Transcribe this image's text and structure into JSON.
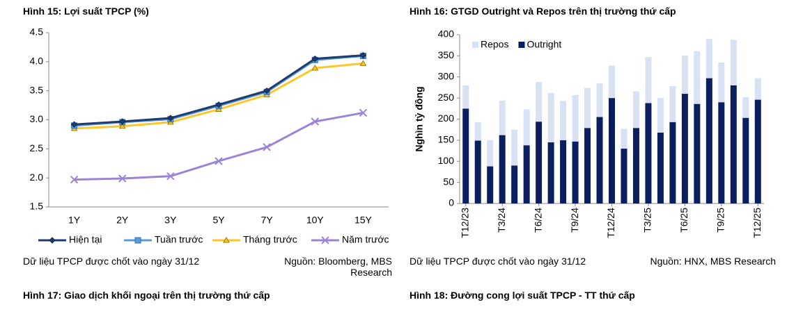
{
  "chart_data": [
    {
      "type": "line",
      "title": "Hình 15: Lợi suất TPCP (%)",
      "categories": [
        "1Y",
        "2Y",
        "3Y",
        "5Y",
        "7Y",
        "10Y",
        "15Y"
      ],
      "series": [
        {
          "name": "Hiện tại",
          "color": "#1f3c6e",
          "marker": "diamond",
          "values": [
            2.92,
            2.97,
            3.03,
            3.26,
            3.5,
            4.05,
            4.11
          ]
        },
        {
          "name": "Tuần trước",
          "color": "#5b9bd5",
          "marker": "square",
          "values": [
            2.9,
            2.96,
            3.01,
            3.24,
            3.48,
            4.03,
            4.1
          ]
        },
        {
          "name": "Tháng trước",
          "color": "#ffc62a",
          "marker": "triangle",
          "values": [
            2.85,
            2.89,
            2.96,
            3.18,
            3.43,
            3.89,
            3.97
          ]
        },
        {
          "name": "Năm trước",
          "color": "#9b83d8",
          "marker": "x",
          "values": [
            1.97,
            1.99,
            2.03,
            2.29,
            2.53,
            2.97,
            3.12
          ]
        }
      ],
      "ylim": [
        1.5,
        4.5
      ],
      "yticks": [
        1.5,
        {
          "value": 2,
          "label": "2.0"
        },
        2.5,
        {
          "value": 3,
          "label": "3.0"
        },
        3.5,
        {
          "value": 4,
          "label": "4.0"
        },
        4.5
      ],
      "grid": false,
      "legend": "bottom",
      "note": "Dữ liệu TPCP được chốt vào ngày 31/12",
      "source": "Nguồn: Bloomberg, MBS Research"
    },
    {
      "type": "stacked-bar",
      "title": "Hình 16: GTGD Outright và Repos trên thị trường thứ cấp",
      "ylabel": "Nghìn tỷ đồng",
      "categories": [
        "T12/23",
        null,
        null,
        "T3/24",
        null,
        null,
        "T6/24",
        null,
        null,
        "T9/24",
        null,
        null,
        "T12/24",
        null,
        null,
        "T3/25",
        null,
        null,
        "T6/25",
        null,
        null,
        "T9/25",
        null,
        null,
        "T12/25"
      ],
      "series": [
        {
          "name": "Repos",
          "color": "#d9e2f3",
          "values": [
            55,
            44,
            62,
            82,
            85,
            85,
            94,
            117,
            93,
            110,
            95,
            80,
            77,
            47,
            87,
            109,
            82,
            85,
            91,
            125,
            93,
            94,
            108,
            49,
            51
          ]
        },
        {
          "name": "Outright",
          "color": "#0b1f5e",
          "values": [
            225,
            149,
            88,
            162,
            90,
            138,
            194,
            145,
            150,
            147,
            179,
            205,
            250,
            130,
            179,
            238,
            168,
            193,
            260,
            236,
            297,
            240,
            280,
            203,
            246
          ]
        }
      ],
      "ylim": [
        0,
        400
      ],
      "yticks": [
        0,
        50,
        100,
        150,
        200,
        250,
        300,
        350,
        400
      ],
      "grid": false,
      "legend": "top-left",
      "note": "Dữ liệu TPCP được chốt vào ngày 31/12",
      "source": "Nguồn: HNX, MBS Research"
    }
  ],
  "captions": [
    "Hình 17: Giao dịch khối ngoại trên thị trường thứ cấp",
    "Hình 18: Đường cong lợi suất TPCP - TT thứ cấp"
  ]
}
